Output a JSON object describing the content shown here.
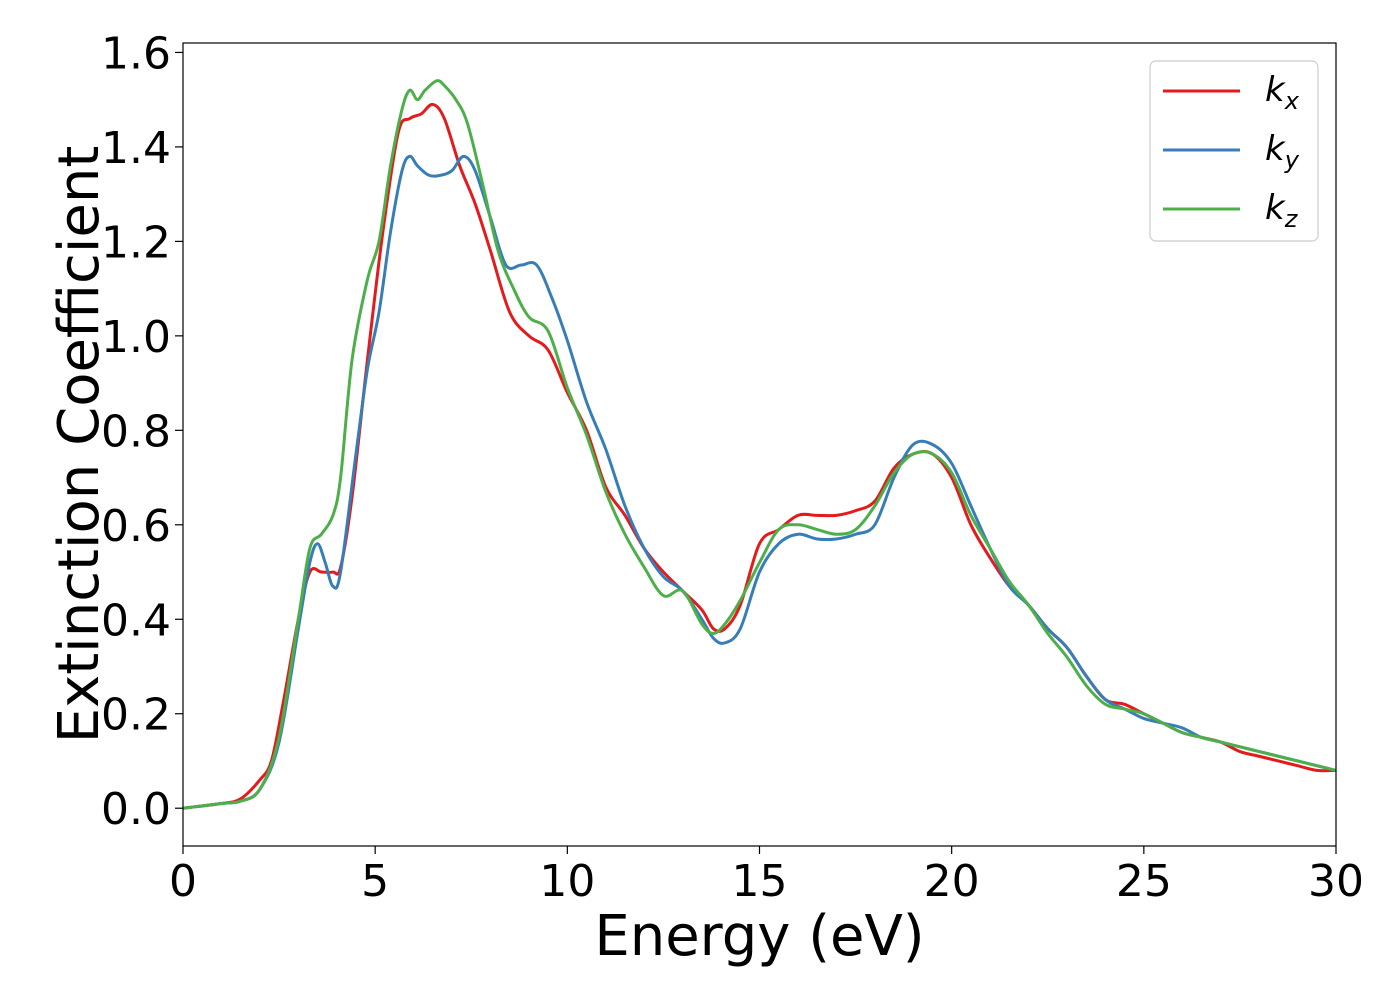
{
  "chart_data": {
    "type": "line",
    "title": "",
    "xlabel": "Energy (eV)",
    "ylabel": "Extinction Coefficient",
    "xlim": [
      0,
      30
    ],
    "ylim": [
      -0.08,
      1.62
    ],
    "xticks": [
      0,
      5,
      10,
      15,
      20,
      25,
      30
    ],
    "yticks": [
      0.0,
      0.2,
      0.4,
      0.6,
      0.8,
      1.0,
      1.2,
      1.4,
      1.6
    ],
    "xtick_labels": [
      "0",
      "5",
      "10",
      "15",
      "20",
      "25",
      "30"
    ],
    "ytick_labels": [
      "0.0",
      "0.2",
      "0.4",
      "0.6",
      "0.8",
      "1.0",
      "1.2",
      "1.4",
      "1.6"
    ],
    "grid": false,
    "legend_position": "top-right",
    "series": [
      {
        "name": "k",
        "subscript": "x",
        "color": "#e41a1c",
        "x": [
          0,
          1,
          1.5,
          2,
          2.3,
          2.6,
          3,
          3.3,
          3.6,
          3.9,
          4.1,
          4.4,
          4.8,
          5.2,
          5.6,
          5.9,
          6.2,
          6.5,
          6.8,
          7.2,
          7.6,
          8,
          8.5,
          9,
          9.5,
          10,
          10.5,
          11,
          11.5,
          12,
          12.5,
          13,
          13.5,
          13.8,
          14.1,
          14.5,
          15,
          15.5,
          16,
          16.5,
          17,
          17.5,
          18,
          18.5,
          19,
          19.5,
          20,
          20.5,
          21,
          21.5,
          22,
          22.5,
          23,
          23.5,
          24,
          24.5,
          25,
          25.5,
          26,
          26.5,
          27,
          27.5,
          28,
          28.5,
          29,
          29.5,
          30
        ],
        "values": [
          0.0,
          0.01,
          0.02,
          0.06,
          0.1,
          0.22,
          0.4,
          0.5,
          0.5,
          0.5,
          0.51,
          0.66,
          0.95,
          1.22,
          1.43,
          1.46,
          1.47,
          1.49,
          1.46,
          1.36,
          1.28,
          1.18,
          1.05,
          1.0,
          0.97,
          0.88,
          0.8,
          0.68,
          0.62,
          0.55,
          0.5,
          0.46,
          0.42,
          0.38,
          0.38,
          0.43,
          0.56,
          0.59,
          0.62,
          0.62,
          0.62,
          0.63,
          0.65,
          0.72,
          0.75,
          0.75,
          0.7,
          0.6,
          0.53,
          0.47,
          0.43,
          0.38,
          0.34,
          0.28,
          0.23,
          0.22,
          0.2,
          0.18,
          0.16,
          0.15,
          0.14,
          0.12,
          0.11,
          0.1,
          0.09,
          0.08,
          0.08
        ]
      },
      {
        "name": "k",
        "subscript": "y",
        "color": "#377eb8",
        "x": [
          0,
          1,
          1.5,
          2,
          2.5,
          3,
          3.3,
          3.5,
          3.7,
          3.9,
          4.1,
          4.5,
          4.8,
          5.1,
          5.4,
          5.7,
          5.9,
          6.1,
          6.4,
          6.7,
          7,
          7.3,
          7.6,
          8,
          8.4,
          8.8,
          9.2,
          9.6,
          10,
          10.5,
          11,
          11.5,
          12,
          12.5,
          13,
          13.5,
          13.8,
          14.1,
          14.5,
          15,
          15.5,
          16,
          16.5,
          17,
          17.5,
          18,
          18.5,
          19,
          19.5,
          20,
          20.5,
          21,
          21.5,
          22,
          22.5,
          23,
          23.5,
          24,
          24.5,
          25,
          25.5,
          26,
          26.5,
          27,
          27.5,
          28,
          28.5,
          29,
          29.5,
          30
        ],
        "values": [
          0.0,
          0.01,
          0.015,
          0.04,
          0.14,
          0.38,
          0.52,
          0.56,
          0.52,
          0.47,
          0.5,
          0.75,
          0.93,
          1.05,
          1.22,
          1.35,
          1.38,
          1.36,
          1.34,
          1.34,
          1.35,
          1.38,
          1.35,
          1.25,
          1.15,
          1.15,
          1.15,
          1.08,
          0.99,
          0.86,
          0.76,
          0.64,
          0.55,
          0.49,
          0.46,
          0.4,
          0.36,
          0.35,
          0.38,
          0.5,
          0.56,
          0.58,
          0.57,
          0.57,
          0.58,
          0.6,
          0.7,
          0.77,
          0.77,
          0.73,
          0.64,
          0.55,
          0.47,
          0.43,
          0.38,
          0.34,
          0.28,
          0.23,
          0.21,
          0.19,
          0.18,
          0.17,
          0.15,
          0.14,
          0.13,
          0.12,
          0.11,
          0.1,
          0.09,
          0.08
        ]
      },
      {
        "name": "k",
        "subscript": "z",
        "color": "#4daf4a",
        "x": [
          0,
          1,
          1.5,
          2,
          2.5,
          3,
          3.3,
          3.6,
          3.9,
          4.1,
          4.4,
          4.8,
          5.1,
          5.4,
          5.7,
          5.9,
          6.1,
          6.3,
          6.6,
          6.8,
          7.1,
          7.4,
          7.8,
          8.2,
          8.6,
          9,
          9.5,
          10,
          10.5,
          11,
          11.5,
          12,
          12.5,
          13,
          13.5,
          13.8,
          14.1,
          14.5,
          15,
          15.5,
          16,
          16.5,
          17,
          17.5,
          18,
          18.5,
          19,
          19.5,
          20,
          20.5,
          21,
          21.5,
          22,
          22.5,
          23,
          23.5,
          24,
          24.5,
          25,
          25.5,
          26,
          26.5,
          27,
          27.5,
          28,
          28.5,
          29,
          29.5,
          30
        ],
        "values": [
          0.0,
          0.01,
          0.015,
          0.04,
          0.15,
          0.4,
          0.55,
          0.58,
          0.62,
          0.7,
          0.95,
          1.12,
          1.2,
          1.36,
          1.48,
          1.52,
          1.5,
          1.52,
          1.54,
          1.53,
          1.5,
          1.45,
          1.32,
          1.18,
          1.1,
          1.04,
          1.01,
          0.89,
          0.79,
          0.67,
          0.58,
          0.51,
          0.45,
          0.46,
          0.39,
          0.37,
          0.39,
          0.44,
          0.52,
          0.59,
          0.6,
          0.59,
          0.58,
          0.59,
          0.64,
          0.71,
          0.75,
          0.75,
          0.71,
          0.62,
          0.55,
          0.48,
          0.43,
          0.37,
          0.32,
          0.26,
          0.22,
          0.21,
          0.2,
          0.18,
          0.16,
          0.15,
          0.14,
          0.13,
          0.12,
          0.11,
          0.1,
          0.09,
          0.08
        ]
      }
    ]
  }
}
